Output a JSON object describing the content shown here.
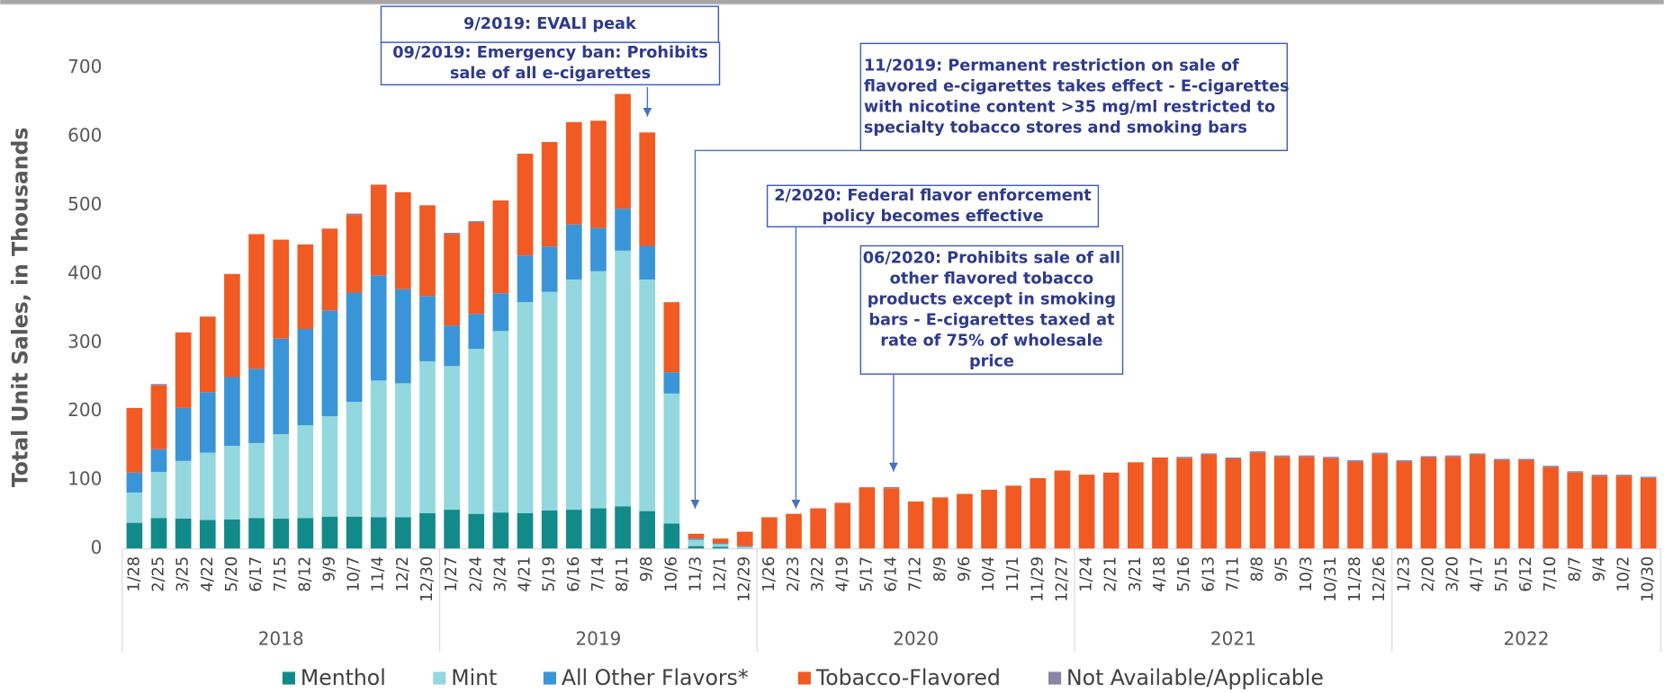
{
  "chart_data": {
    "type": "stacked_bar",
    "y_label": "Total Unit Sales, in Thousands",
    "categories": [
      "1/28",
      "2/25",
      "3/25",
      "4/22",
      "5/20",
      "6/17",
      "7/15",
      "8/12",
      "9/9",
      "10/7",
      "11/4",
      "12/2",
      "12/30",
      "1/27",
      "2/24",
      "3/24",
      "4/21",
      "5/19",
      "6/16",
      "7/14",
      "8/11",
      "9/8",
      "10/6",
      "11/3",
      "12/1",
      "12/29",
      "1/26",
      "2/23",
      "3/22",
      "4/19",
      "5/17",
      "6/14",
      "7/12",
      "8/9",
      "9/6",
      "10/4",
      "11/1",
      "11/29",
      "12/27",
      "1/24",
      "2/21",
      "3/21",
      "4/18",
      "5/16",
      "6/13",
      "7/11",
      "8/8",
      "9/5",
      "10/3",
      "10/31",
      "11/28",
      "12/26",
      "1/23",
      "2/20",
      "3/20",
      "4/17",
      "5/15",
      "6/12",
      "7/10",
      "8/7",
      "9/4",
      "10/2",
      "10/30"
    ],
    "groups": [
      {
        "label": "2018",
        "categories": 13
      },
      {
        "label": "2019",
        "categories": 13
      },
      {
        "label": "2020",
        "categories": 13
      },
      {
        "label": "2021",
        "categories": 13
      },
      {
        "label": "2022",
        "categories": 11
      }
    ],
    "series": [
      {
        "name": "Menthol",
        "color": "#138a8a",
        "values": [
          38,
          45,
          44,
          42,
          43,
          45,
          44,
          45,
          47,
          47,
          46,
          46,
          52,
          57,
          51,
          53,
          52,
          56,
          57,
          59,
          62,
          55,
          37,
          4,
          3,
          1,
          0,
          0,
          0,
          0,
          0,
          0,
          0,
          0,
          0,
          0,
          0,
          0,
          0,
          0,
          0,
          0,
          0,
          0,
          0,
          0,
          0,
          0,
          0,
          0,
          0,
          0,
          0,
          0,
          0,
          0,
          0,
          0,
          0,
          0,
          0,
          0,
          0
        ]
      },
      {
        "name": "Mint",
        "color": "#92d8de",
        "values": [
          44,
          67,
          84,
          98,
          107,
          109,
          123,
          135,
          146,
          167,
          199,
          195,
          221,
          209,
          240,
          264,
          307,
          318,
          335,
          345,
          372,
          337,
          189,
          9,
          4,
          2,
          0,
          0,
          0,
          0,
          0,
          0,
          0,
          0,
          0,
          0,
          0,
          0,
          0,
          0,
          0,
          0,
          0,
          0,
          0,
          0,
          0,
          0,
          0,
          0,
          0,
          0,
          0,
          0,
          0,
          0,
          0,
          0,
          0,
          0,
          0,
          0,
          0
        ]
      },
      {
        "name": "All Other Flavors*",
        "color": "#3a95d8",
        "values": [
          29,
          33,
          77,
          88,
          100,
          108,
          139,
          140,
          154,
          159,
          153,
          137,
          95,
          59,
          51,
          55,
          68,
          66,
          80,
          63,
          61,
          49,
          31,
          2,
          1,
          1,
          0,
          0,
          0,
          0,
          0,
          0,
          0,
          0,
          0,
          0,
          0,
          0,
          0,
          0,
          0,
          0,
          0,
          0,
          0,
          0,
          0,
          0,
          0,
          0,
          0,
          0,
          0,
          0,
          0,
          0,
          0,
          0,
          0,
          0,
          0,
          0,
          0
        ]
      },
      {
        "name": "Tobacco-Flavored",
        "color": "#f15a22",
        "values": [
          94,
          93,
          110,
          110,
          150,
          196,
          144,
          123,
          119,
          113,
          132,
          141,
          132,
          133,
          133,
          135,
          148,
          152,
          149,
          156,
          167,
          165,
          102,
          7,
          7,
          21,
          46,
          51,
          59,
          67,
          89,
          88,
          69,
          75,
          80,
          86,
          92,
          103,
          114,
          108,
          111,
          126,
          133,
          132,
          137,
          131,
          140,
          134,
          134,
          132,
          127,
          138,
          127,
          133,
          134,
          137,
          129,
          129,
          119,
          111,
          106,
          106,
          103
        ]
      },
      {
        "name": "Not Available/Applicable",
        "color": "#8b86a8",
        "values": [
          0,
          2,
          0,
          0,
          0,
          0,
          0,
          0,
          0,
          2,
          0,
          0,
          0,
          2,
          2,
          0,
          0,
          0,
          0,
          0,
          0,
          0,
          0,
          0,
          0,
          0,
          0,
          0,
          0,
          0,
          1,
          2,
          0,
          0,
          0,
          0,
          0,
          0,
          0,
          0,
          0,
          0,
          0,
          2,
          2,
          2,
          2,
          2,
          2,
          2,
          2,
          2,
          2,
          2,
          2,
          2,
          2,
          2,
          2,
          2,
          2,
          2,
          2
        ]
      }
    ],
    "ylim": [
      0,
      700
    ],
    "yticks": [
      0,
      100,
      200,
      300,
      400,
      500,
      600,
      700
    ],
    "legend": "bottom",
    "annotations": [
      {
        "lines": [
          "9/2019: EVALI peak"
        ]
      },
      {
        "lines": [
          "09/2019: Emergency ban: Prohibits",
          "sale of all e-cigarettes"
        ]
      },
      {
        "lines": [
          "11/2019: Permanent restriction on sale of",
          "flavored e-cigarettes takes effect - E-cigarettes",
          "with nicotine content >35 mg/ml restricted to",
          "specialty tobacco stores and smoking bars"
        ]
      },
      {
        "lines": [
          "2/2020: Federal flavor enforcement",
          "policy becomes effective"
        ]
      },
      {
        "lines": [
          "06/2020: Prohibits sale of all",
          "other flavored tobacco",
          "products except in smoking",
          "bars - E-cigarettes taxed at",
          "rate of 75% of wholesale",
          "price"
        ]
      }
    ]
  }
}
